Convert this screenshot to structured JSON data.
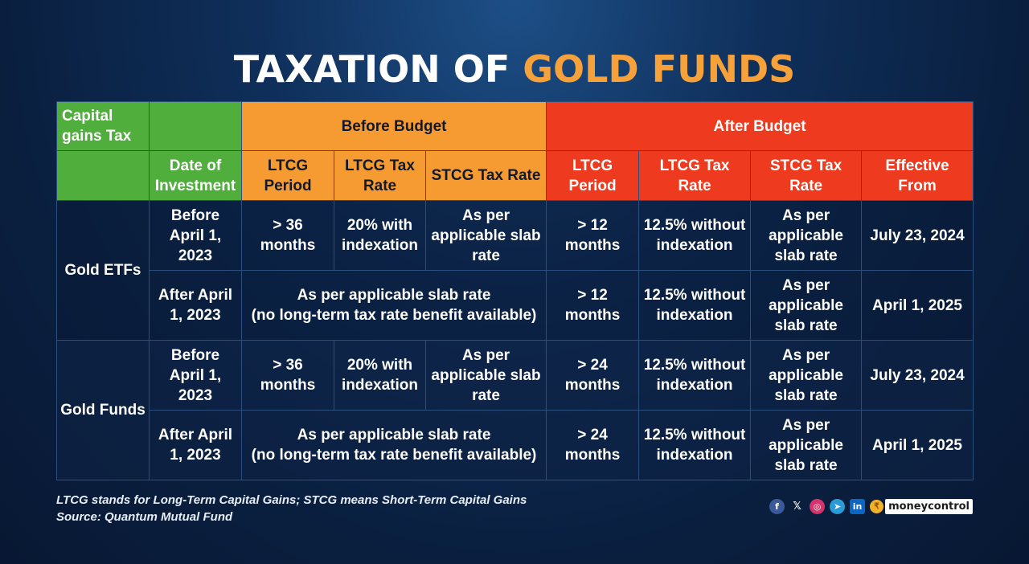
{
  "title": {
    "part1": "TAXATION OF ",
    "part2": "GOLD FUNDS"
  },
  "header": {
    "capital_gains": "Capital gains Tax",
    "before_budget": "Before Budget",
    "after_budget": "After Budget",
    "date_of_investment": "Date of Investment",
    "before_ltcg_period": "LTCG Period",
    "before_ltcg_rate": "LTCG Tax Rate",
    "before_stcg_rate": "STCG Tax Rate",
    "after_ltcg_period": "LTCG Period",
    "after_ltcg_rate": "LTCG Tax Rate",
    "after_stcg_rate": "STCG Tax Rate",
    "effective_from": "Effective From"
  },
  "groups": [
    {
      "name": "Gold ETFs",
      "rows": [
        {
          "date": "Before April 1, 2023",
          "before_ltcg_period": "> 36 months",
          "before_ltcg_rate": "20% with indexation",
          "before_stcg_rate": "As per applicable slab rate",
          "after_ltcg_period": "> 12 months",
          "after_ltcg_rate": "12.5% without indexation",
          "after_stcg_rate": "As per applicable slab rate",
          "effective_from": "July 23, 2024"
        },
        {
          "date": "After April 1, 2023",
          "merged_line1": "As per applicable slab rate",
          "merged_line2": "(no long-term tax rate benefit available)",
          "after_ltcg_period": "> 12 months",
          "after_ltcg_rate": "12.5% without indexation",
          "after_stcg_rate": "As per applicable slab rate",
          "effective_from": "April 1, 2025"
        }
      ]
    },
    {
      "name": "Gold Funds",
      "rows": [
        {
          "date": "Before April 1, 2023",
          "before_ltcg_period": "> 36 months",
          "before_ltcg_rate": "20% with indexation",
          "before_stcg_rate": "As per applicable slab rate",
          "after_ltcg_period": "> 24 months",
          "after_ltcg_rate": "12.5% without indexation",
          "after_stcg_rate": "As per applicable slab rate",
          "effective_from": "July 23, 2024"
        },
        {
          "date": "After April 1, 2023",
          "merged_line1": "As per applicable slab rate",
          "merged_line2": "(no long-term tax rate benefit available)",
          "after_ltcg_period": "> 24 months",
          "after_ltcg_rate": "12.5% without indexation",
          "after_stcg_rate": "As per applicable slab rate",
          "effective_from": "April 1, 2025"
        }
      ]
    }
  ],
  "footer": {
    "note": "LTCG stands for Long-Term Capital Gains; STCG means Short-Term Capital Gains",
    "source": "Source: Quantum Mutual Fund"
  },
  "social": {
    "facebook": "f",
    "x": "𝕏",
    "instagram": "◎",
    "telegram": "➤",
    "linkedin": "in",
    "coin": "₹",
    "brand": "moneycontrol"
  },
  "colors": {
    "green_header": "#4fae3c",
    "orange_header": "#f59b32",
    "red_header": "#ee3a1e",
    "title_gold": "#f7a13b",
    "background": "#0f2f5a"
  }
}
